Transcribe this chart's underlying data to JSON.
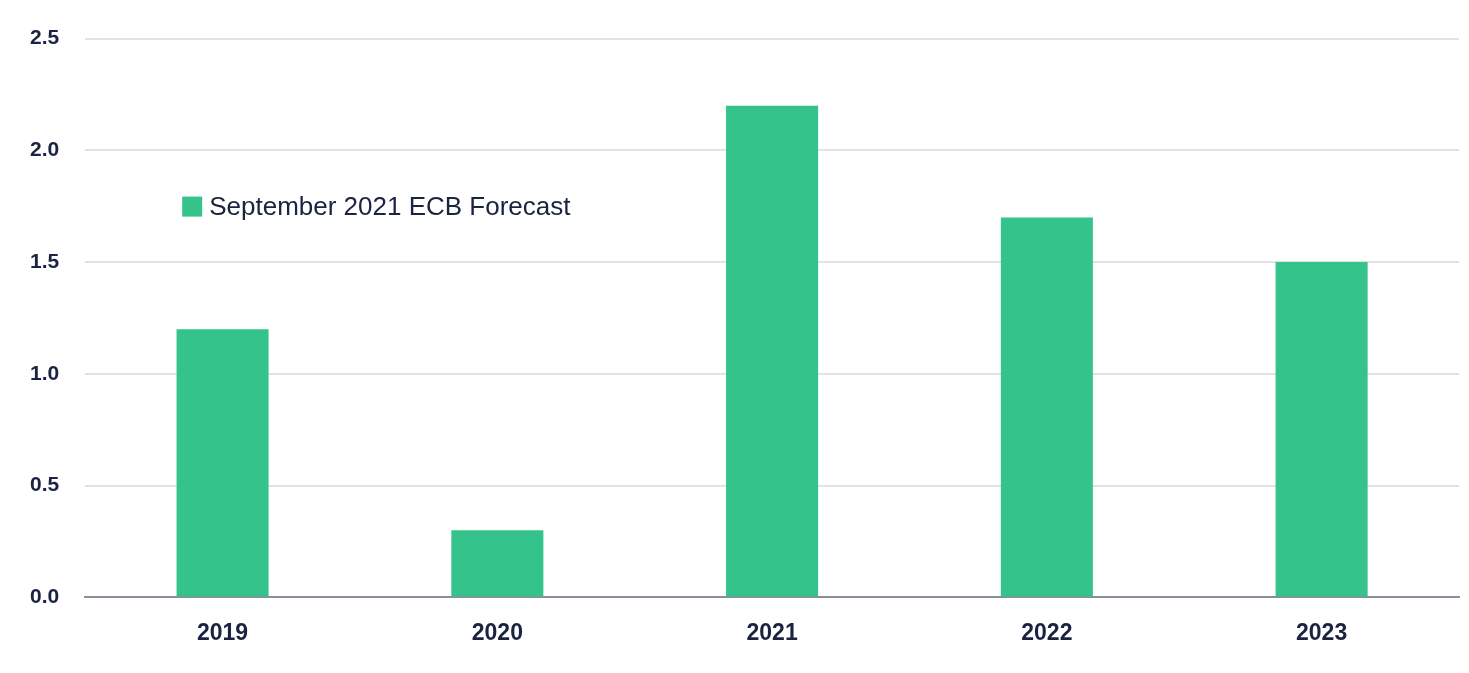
{
  "chart_data": {
    "type": "bar",
    "categories": [
      "2019",
      "2020",
      "2021",
      "2022",
      "2023"
    ],
    "series": [
      {
        "name": "September 2021 ECB Forecast",
        "color": "#34c38a",
        "values": [
          1.2,
          0.3,
          2.2,
          1.7,
          1.5
        ]
      }
    ],
    "ylim": [
      0,
      2.5
    ],
    "yticks": [
      {
        "value": 0,
        "label": "0.0"
      },
      {
        "value": 0.5,
        "label": "0.5"
      },
      {
        "value": 1,
        "label": "1.0"
      },
      {
        "value": 1.5,
        "label": "1.5"
      },
      {
        "value": 2,
        "label": "2.0"
      },
      {
        "value": 2.5,
        "label": "2.5"
      }
    ],
    "grid": "y",
    "legend": "top left"
  }
}
